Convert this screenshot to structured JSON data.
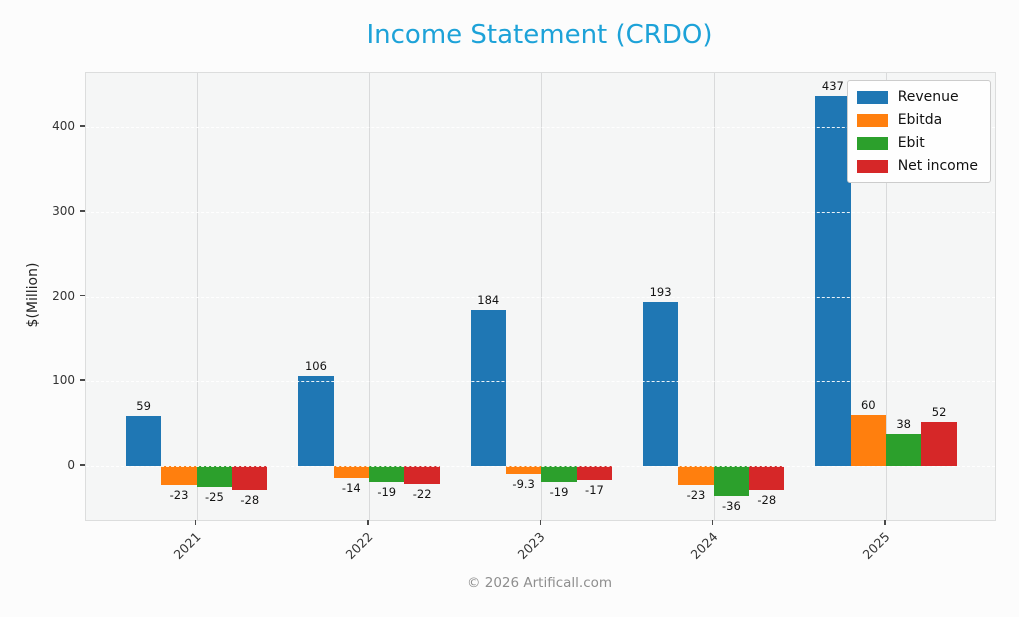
{
  "chart_data": {
    "type": "bar",
    "title": "Income Statement (CRDO)",
    "title_color": "#1da2d8",
    "ylabel": "$(Million)",
    "categories": [
      "2021",
      "2022",
      "2023",
      "2024",
      "2025"
    ],
    "series": [
      {
        "name": "Revenue",
        "color": "#1f77b4",
        "values": [
          59,
          106,
          184,
          193,
          437
        ]
      },
      {
        "name": "Ebitda",
        "color": "#ff7f0e",
        "values": [
          -23,
          -14,
          -9.3,
          -23,
          60
        ]
      },
      {
        "name": "Ebit",
        "color": "#2ca02c",
        "values": [
          -25,
          -19,
          -19,
          -36,
          38
        ]
      },
      {
        "name": "Net income",
        "color": "#d62728",
        "values": [
          -28,
          -22,
          -17,
          -28,
          52
        ]
      }
    ],
    "yticks": [
      0,
      100,
      200,
      300,
      400
    ],
    "ylim": [
      -64,
      464
    ],
    "grid": true,
    "legend_position": "top-right"
  },
  "footer": {
    "text": "© 2026 Artificall.com"
  }
}
